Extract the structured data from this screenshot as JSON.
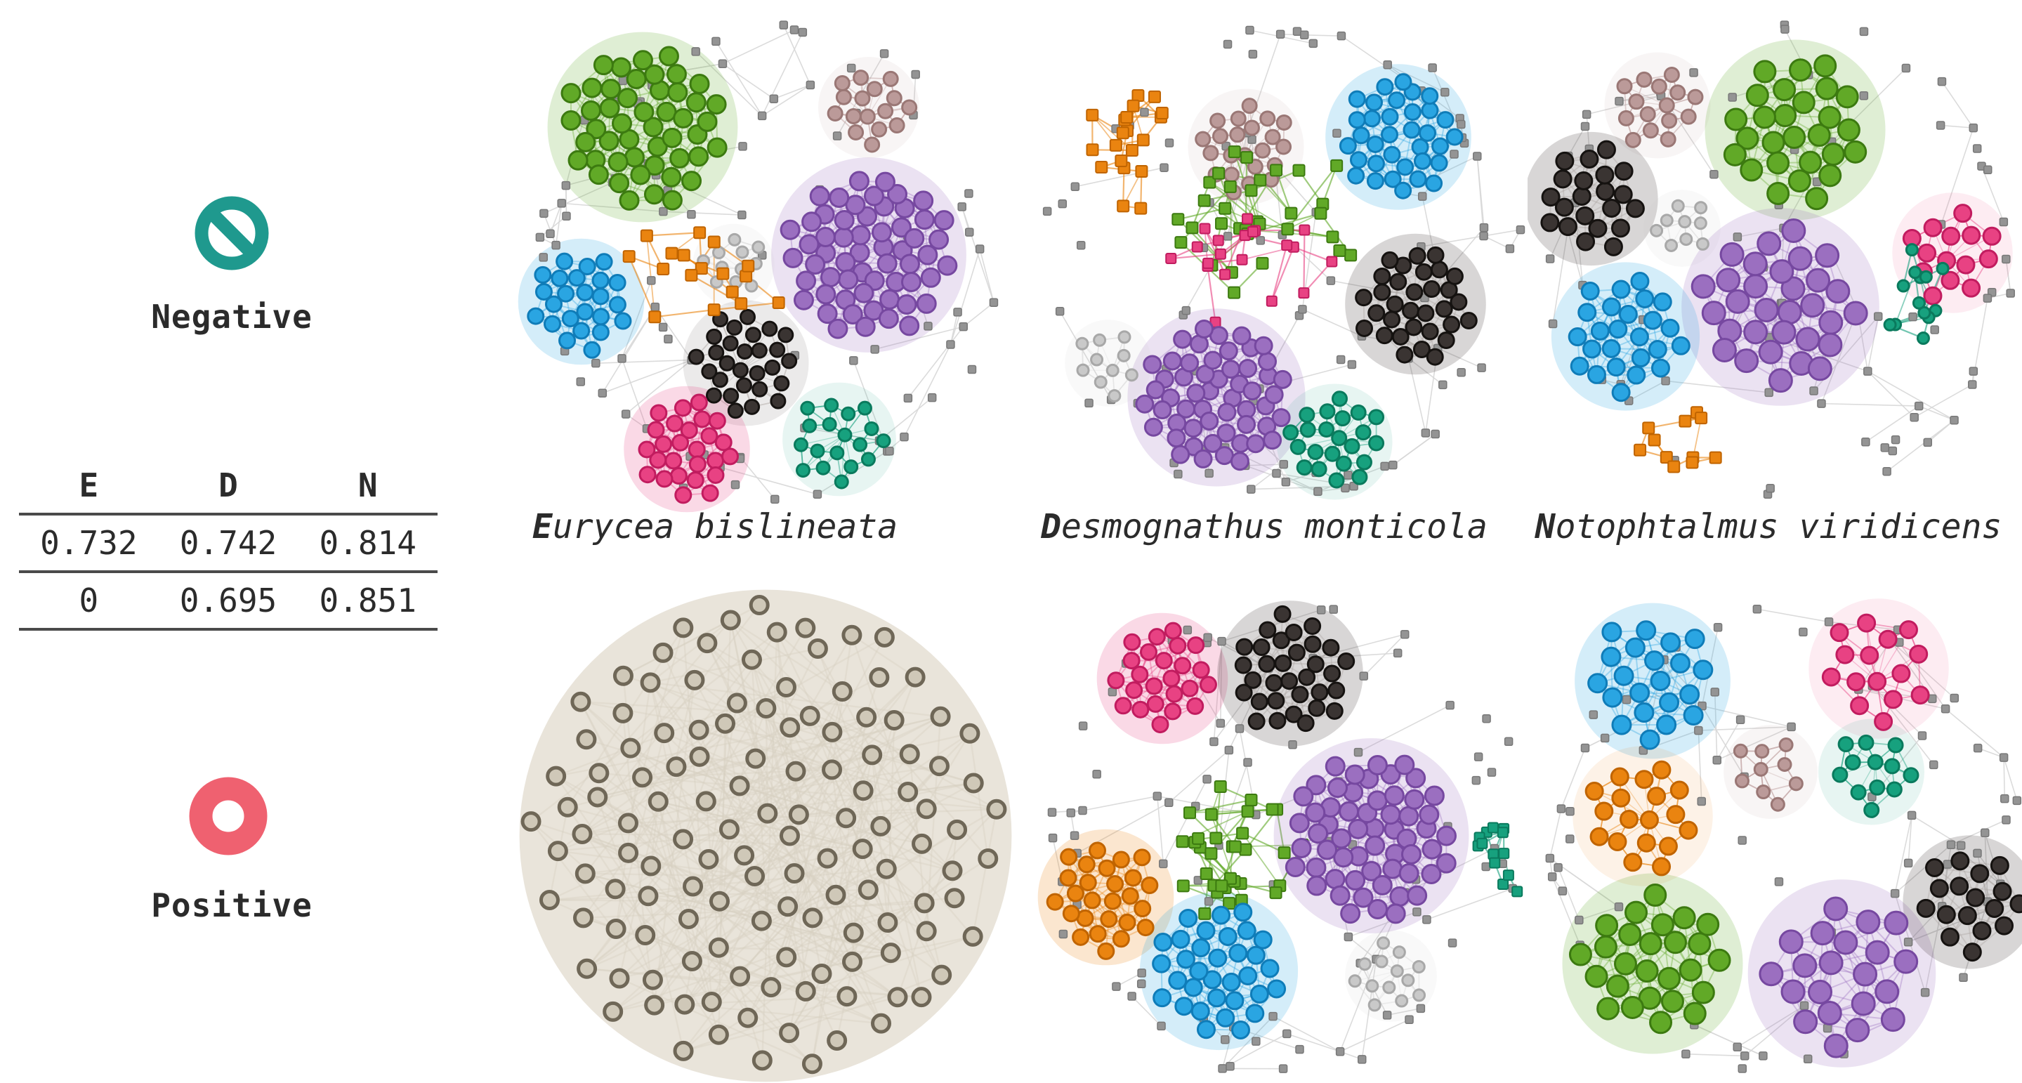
{
  "figure": {
    "legend": {
      "negative": {
        "label": "Negative",
        "icon": "prohibition-sign",
        "color": "#1f998e"
      },
      "positive": {
        "label": "Positive",
        "icon": "donut-ring",
        "color": "#ef6170"
      }
    },
    "table": {
      "headers": [
        "E",
        "D",
        "N"
      ],
      "rows": [
        [
          "0.732",
          "0.742",
          "0.814"
        ],
        [
          "0",
          "0.695",
          "0.851"
        ]
      ]
    }
  },
  "species_labels": [
    {
      "initial": "E",
      "rest": "urycea bislineata",
      "full": "Eurycea bislineata"
    },
    {
      "initial": "D",
      "rest": "esmognathus monticola",
      "full": "Desmognathus monticola"
    },
    {
      "initial": "N",
      "rest": "otophtalmus viridicens",
      "full": "Notophtalmus viridicens"
    }
  ],
  "chart_data": {
    "type": "network-grid",
    "grid_rows": [
      "Negative",
      "Positive"
    ],
    "grid_columns": [
      "Eurycea bislineata",
      "Desmognathus monticola",
      "Notophtalmus viridicens"
    ],
    "table_values": {
      "headers": [
        "E",
        "D",
        "N"
      ],
      "negative_row": [
        0.732,
        0.742,
        0.814
      ],
      "positive_row": [
        0,
        0.695,
        0.851
      ]
    },
    "palette": {
      "green": {
        "fill": "#61a927",
        "stroke": "#3c7a10"
      },
      "purple": {
        "fill": "#9b6fc0",
        "stroke": "#7648a0"
      },
      "blue": {
        "fill": "#2aa5e2",
        "stroke": "#0f7cb8"
      },
      "black": {
        "fill": "#3a3432",
        "stroke": "#151210",
        "edge": "#a9a29e"
      },
      "pink": {
        "fill": "#e84283",
        "stroke": "#c11c5f"
      },
      "teal": {
        "fill": "#17a17e",
        "stroke": "#0a7a5d"
      },
      "orange": {
        "fill": "#ea8410",
        "stroke": "#c06400"
      },
      "mauve": {
        "fill": "#bb9a99",
        "stroke": "#9a7775"
      },
      "gray": {
        "fill": "#949494",
        "stroke": "#787878",
        "edge": "#d8d8d8"
      },
      "lightgray": {
        "fill": "#c9c9c9",
        "stroke": "#a8a8a8",
        "edge": "#dcdcdc"
      },
      "taupe": {
        "fill": "#b4ac9c",
        "stroke": "#6f6757",
        "edge": "#d8d1c2",
        "haze": "#e5dfd3"
      }
    },
    "panels": [
      {
        "id": "negative-eurycea",
        "row": "Negative",
        "species": "Eurycea bislineata",
        "background_nodes": 85,
        "communities": [
          {
            "color": "green",
            "style": "dense",
            "shape": "circle",
            "cx": -0.5,
            "cy": -0.54,
            "r": 0.32,
            "n": 48,
            "node_r": 13
          },
          {
            "color": "mauve",
            "style": "medium",
            "shape": "circle",
            "cx": 0.42,
            "cy": -0.62,
            "r": 0.16,
            "n": 16,
            "node_r": 10
          },
          {
            "color": "purple",
            "style": "dense",
            "shape": "circle",
            "cx": 0.42,
            "cy": -0.02,
            "r": 0.33,
            "n": 58,
            "node_r": 13
          },
          {
            "color": "blue",
            "style": "dense",
            "shape": "circle",
            "cx": -0.75,
            "cy": 0.17,
            "r": 0.2,
            "n": 24,
            "node_r": 11
          },
          {
            "color": "lightgray",
            "style": "medium",
            "shape": "circle",
            "cx": -0.13,
            "cy": 0.02,
            "r": 0.13,
            "n": 11,
            "node_r": 8
          },
          {
            "color": "black",
            "style": "medium",
            "shape": "circle",
            "cx": -0.08,
            "cy": 0.42,
            "r": 0.21,
            "n": 28,
            "node_r": 10
          },
          {
            "color": "pink",
            "style": "dense",
            "shape": "circle",
            "cx": -0.32,
            "cy": 0.77,
            "r": 0.2,
            "n": 26,
            "node_r": 11
          },
          {
            "color": "teal",
            "style": "medium",
            "shape": "circle",
            "cx": 0.3,
            "cy": 0.73,
            "r": 0.19,
            "n": 18,
            "node_r": 9
          },
          {
            "color": "orange",
            "style": "chain",
            "shape": "square",
            "cx": -0.3,
            "cy": 0.25,
            "r": 0.4,
            "n": 17,
            "node_r": 8
          }
        ]
      },
      {
        "id": "negative-desmognathus",
        "row": "Negative",
        "species": "Desmognathus monticola",
        "background_nodes": 90,
        "communities": [
          {
            "color": "orange",
            "style": "chain",
            "shape": "square",
            "cx": -0.6,
            "cy": -0.43,
            "r": 0.26,
            "n": 20,
            "node_r": 8
          },
          {
            "color": "mauve",
            "style": "medium",
            "shape": "circle",
            "cx": -0.16,
            "cy": -0.46,
            "r": 0.19,
            "n": 22,
            "node_r": 10
          },
          {
            "color": "blue",
            "style": "dense",
            "shape": "circle",
            "cx": 0.46,
            "cy": -0.5,
            "r": 0.24,
            "n": 34,
            "node_r": 11
          },
          {
            "color": "green",
            "style": "chain",
            "shape": "square",
            "cx": -0.05,
            "cy": -0.02,
            "r": 0.45,
            "n": 32,
            "node_r": 8
          },
          {
            "color": "pink",
            "style": "chain",
            "shape": "square",
            "cx": -0.12,
            "cy": 0.1,
            "r": 0.38,
            "n": 20,
            "node_r": 7
          },
          {
            "color": "black",
            "style": "dense",
            "shape": "circle",
            "cx": 0.53,
            "cy": 0.18,
            "r": 0.23,
            "n": 32,
            "node_r": 11
          },
          {
            "color": "purple",
            "style": "dense",
            "shape": "circle",
            "cx": -0.28,
            "cy": 0.56,
            "r": 0.3,
            "n": 54,
            "node_r": 12
          },
          {
            "color": "teal",
            "style": "medium",
            "shape": "circle",
            "cx": 0.2,
            "cy": 0.74,
            "r": 0.19,
            "n": 22,
            "node_r": 10
          },
          {
            "color": "lightgray",
            "style": "medium",
            "shape": "circle",
            "cx": -0.72,
            "cy": 0.42,
            "r": 0.14,
            "n": 10,
            "node_r": 8
          }
        ]
      },
      {
        "id": "negative-notophtalmus",
        "row": "Negative",
        "species": "Notophtalmus viridicens",
        "background_nodes": 80,
        "communities": [
          {
            "color": "mauve",
            "style": "medium",
            "shape": "circle",
            "cx": -0.5,
            "cy": -0.6,
            "r": 0.17,
            "n": 15,
            "node_r": 10
          },
          {
            "color": "green",
            "style": "dense",
            "shape": "circle",
            "cx": 0.06,
            "cy": -0.5,
            "r": 0.29,
            "n": 27,
            "node_r": 15
          },
          {
            "color": "black",
            "style": "dense",
            "shape": "circle",
            "cx": -0.77,
            "cy": -0.22,
            "r": 0.21,
            "n": 21,
            "node_r": 12
          },
          {
            "color": "lightgray",
            "style": "medium",
            "shape": "circle",
            "cx": -0.4,
            "cy": -0.1,
            "r": 0.12,
            "n": 9,
            "node_r": 8
          },
          {
            "color": "purple",
            "style": "dense",
            "shape": "circle",
            "cx": 0.0,
            "cy": 0.22,
            "r": 0.32,
            "n": 31,
            "node_r": 16
          },
          {
            "color": "pink",
            "style": "medium",
            "shape": "circle",
            "cx": 0.7,
            "cy": 0.0,
            "r": 0.19,
            "n": 14,
            "node_r": 12
          },
          {
            "color": "blue",
            "style": "dense",
            "shape": "circle",
            "cx": -0.63,
            "cy": 0.34,
            "r": 0.24,
            "n": 25,
            "node_r": 12
          },
          {
            "color": "teal",
            "style": "chain",
            "shape": "circle",
            "cx": 0.43,
            "cy": 0.15,
            "r": 0.3,
            "n": 13,
            "node_r": 8
          },
          {
            "color": "orange",
            "style": "chain",
            "shape": "square",
            "cx": -0.45,
            "cy": 0.72,
            "r": 0.22,
            "n": 11,
            "node_r": 8
          }
        ]
      },
      {
        "id": "positive-eurycea",
        "row": "Positive",
        "species": "Eurycea bislineata",
        "background_nodes": 0,
        "communities": [
          {
            "color": "taupe",
            "style": "hairball",
            "shape": "circle",
            "cx": 0.0,
            "cy": 0.0,
            "r": 0.96,
            "n": 128,
            "node_r": 12
          }
        ]
      },
      {
        "id": "positive-desmognathus",
        "row": "Positive",
        "species": "Desmognathus monticola",
        "background_nodes": 88,
        "communities": [
          {
            "color": "pink",
            "style": "dense",
            "shape": "circle",
            "cx": -0.5,
            "cy": -0.64,
            "r": 0.21,
            "n": 24,
            "node_r": 11
          },
          {
            "color": "black",
            "style": "dense",
            "shape": "circle",
            "cx": 0.02,
            "cy": -0.66,
            "r": 0.24,
            "n": 32,
            "node_r": 11
          },
          {
            "color": "green",
            "style": "chain",
            "shape": "square",
            "cx": -0.25,
            "cy": -0.05,
            "r": 0.4,
            "n": 33,
            "node_r": 8
          },
          {
            "color": "purple",
            "style": "dense",
            "shape": "circle",
            "cx": 0.35,
            "cy": 0.0,
            "r": 0.33,
            "n": 58,
            "node_r": 13
          },
          {
            "color": "orange",
            "style": "dense",
            "shape": "circle",
            "cx": -0.73,
            "cy": 0.25,
            "r": 0.22,
            "n": 26,
            "node_r": 11
          },
          {
            "color": "blue",
            "style": "dense",
            "shape": "circle",
            "cx": -0.27,
            "cy": 0.55,
            "r": 0.26,
            "n": 33,
            "node_r": 12
          },
          {
            "color": "teal",
            "style": "chain",
            "shape": "square",
            "cx": 0.83,
            "cy": 0.12,
            "r": 0.19,
            "n": 13,
            "node_r": 7
          },
          {
            "color": "lightgray",
            "style": "medium",
            "shape": "circle",
            "cx": 0.43,
            "cy": 0.57,
            "r": 0.15,
            "n": 13,
            "node_r": 8
          }
        ]
      },
      {
        "id": "positive-notophtalmus",
        "row": "Positive",
        "species": "Notophtalmus viridicens",
        "background_nodes": 75,
        "communities": [
          {
            "color": "blue",
            "style": "dense",
            "shape": "circle",
            "cx": -0.52,
            "cy": -0.63,
            "r": 0.25,
            "n": 21,
            "node_r": 13
          },
          {
            "color": "pink",
            "style": "medium",
            "shape": "circle",
            "cx": 0.4,
            "cy": -0.68,
            "r": 0.23,
            "n": 15,
            "node_r": 12
          },
          {
            "color": "mauve",
            "style": "medium",
            "shape": "circle",
            "cx": -0.04,
            "cy": -0.26,
            "r": 0.15,
            "n": 9,
            "node_r": 9
          },
          {
            "color": "teal",
            "style": "medium",
            "shape": "circle",
            "cx": 0.37,
            "cy": -0.26,
            "r": 0.17,
            "n": 12,
            "node_r": 10
          },
          {
            "color": "orange",
            "style": "medium",
            "shape": "circle",
            "cx": -0.56,
            "cy": -0.08,
            "r": 0.23,
            "n": 18,
            "node_r": 12
          },
          {
            "color": "green",
            "style": "dense",
            "shape": "circle",
            "cx": -0.52,
            "cy": 0.52,
            "r": 0.29,
            "n": 26,
            "node_r": 15
          },
          {
            "color": "purple",
            "style": "dense",
            "shape": "circle",
            "cx": 0.25,
            "cy": 0.56,
            "r": 0.3,
            "n": 21,
            "node_r": 16
          },
          {
            "color": "black",
            "style": "dense",
            "shape": "circle",
            "cx": 0.77,
            "cy": 0.27,
            "r": 0.21,
            "n": 17,
            "node_r": 12
          }
        ]
      }
    ]
  }
}
